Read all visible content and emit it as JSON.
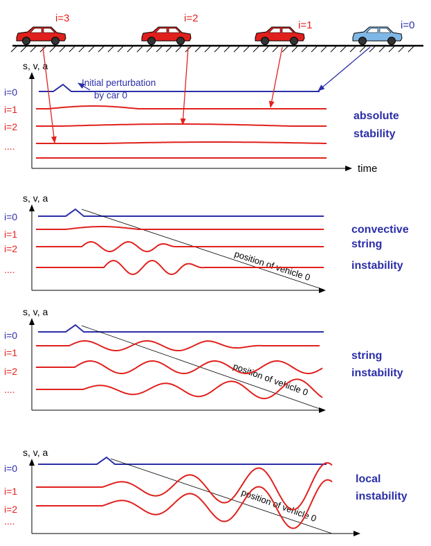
{
  "colors": {
    "red": "#e0201c",
    "blue": "#2b2ea8",
    "car_blue": "#7fb7e6",
    "black": "#000000"
  },
  "cars": [
    {
      "label": "i=3",
      "color": "red"
    },
    {
      "label": "i=2",
      "color": "red"
    },
    {
      "label": "i=1",
      "color": "red"
    },
    {
      "label": "i=0",
      "color": "blue"
    }
  ],
  "annotation": {
    "line1": "Initial perturbation",
    "line2": "by car 0"
  },
  "y_axis_label": "s, v, a",
  "time_label": "time",
  "vehicle_position_label": "position of vehicle 0",
  "row_labels": [
    "i=0",
    "i=1",
    "i=2",
    "...."
  ],
  "panels": [
    {
      "label_lines": [
        "absolute",
        "stability"
      ]
    },
    {
      "label_lines": [
        "convective",
        "string",
        "instability"
      ]
    },
    {
      "label_lines": [
        "string",
        "instability"
      ]
    },
    {
      "label_lines": [
        "local",
        "instability"
      ]
    }
  ]
}
